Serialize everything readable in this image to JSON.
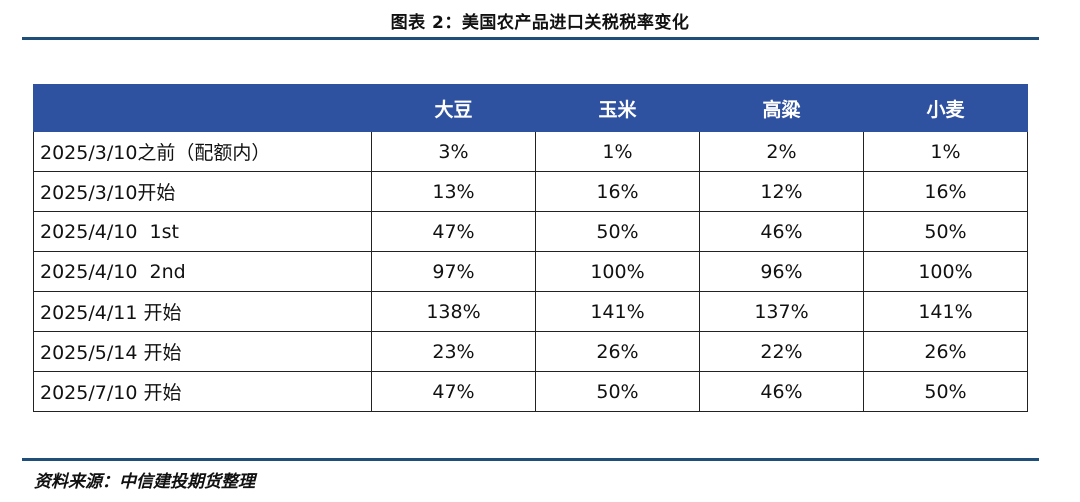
{
  "title": "图表 2：美国农产品进口关税税率变化",
  "table": {
    "headers": [
      "",
      "大豆",
      "玉米",
      "高粱",
      "小麦"
    ],
    "rows": [
      {
        "label": "2025/3/10之前（配额内）",
        "values": [
          "3%",
          "1%",
          "2%",
          "1%"
        ]
      },
      {
        "label": "2025/3/10开始",
        "values": [
          "13%",
          "16%",
          "12%",
          "16%"
        ]
      },
      {
        "label": "2025/4/10  1st",
        "values": [
          "47%",
          "50%",
          "46%",
          "50%"
        ]
      },
      {
        "label": "2025/4/10  2nd",
        "values": [
          "97%",
          "100%",
          "96%",
          "100%"
        ]
      },
      {
        "label": "2025/4/11 开始",
        "values": [
          "138%",
          "141%",
          "137%",
          "141%"
        ]
      },
      {
        "label": "2025/5/14 开始",
        "values": [
          "23%",
          "26%",
          "22%",
          "26%"
        ]
      },
      {
        "label": "2025/7/10 开始",
        "values": [
          "47%",
          "50%",
          "46%",
          "50%"
        ]
      }
    ]
  },
  "source": "资料来源：中信建投期货整理",
  "colors": {
    "header_bg": "#2f52a0",
    "rule": "#1f4e79"
  }
}
